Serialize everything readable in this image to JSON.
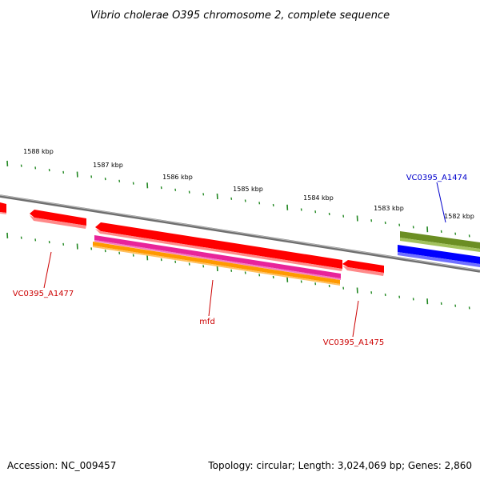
{
  "title": "Vibrio cholerae O395 chromosome 2, complete sequence",
  "footer": {
    "accession": "Accession: NC_009457",
    "summary": "Topology: circular; Length: 3,024,069 bp; Genes: 2,860"
  },
  "ruler": {
    "unit": "kbp",
    "labels": [
      "1588 kbp",
      "1587 kbp",
      "1586 kbp",
      "1585 kbp",
      "1584 kbp",
      "1583 kbp",
      "1582 kbp"
    ]
  },
  "genes": [
    {
      "id": "VC0395_A1477",
      "label": "VC0395_A1477",
      "strand": "reverse",
      "color": "#cc0000"
    },
    {
      "id": "mfd",
      "label": "mfd",
      "strand": "reverse",
      "color": "#cc0000"
    },
    {
      "id": "VC0395_A1475",
      "label": "VC0395_A1475",
      "strand": "reverse",
      "color": "#cc0000"
    },
    {
      "id": "VC0395_A1474",
      "label": "VC0395_A1474",
      "strand": "forward",
      "color": "#0000cc"
    }
  ],
  "colors": {
    "backbone": "#888888",
    "ticks": "#228822",
    "gene_reverse": "#ff0000",
    "gene_forward": "#0000ff",
    "feature_green": "#6b8e23",
    "feature_magenta": "#e8249a",
    "feature_orange": "#ff9900"
  }
}
